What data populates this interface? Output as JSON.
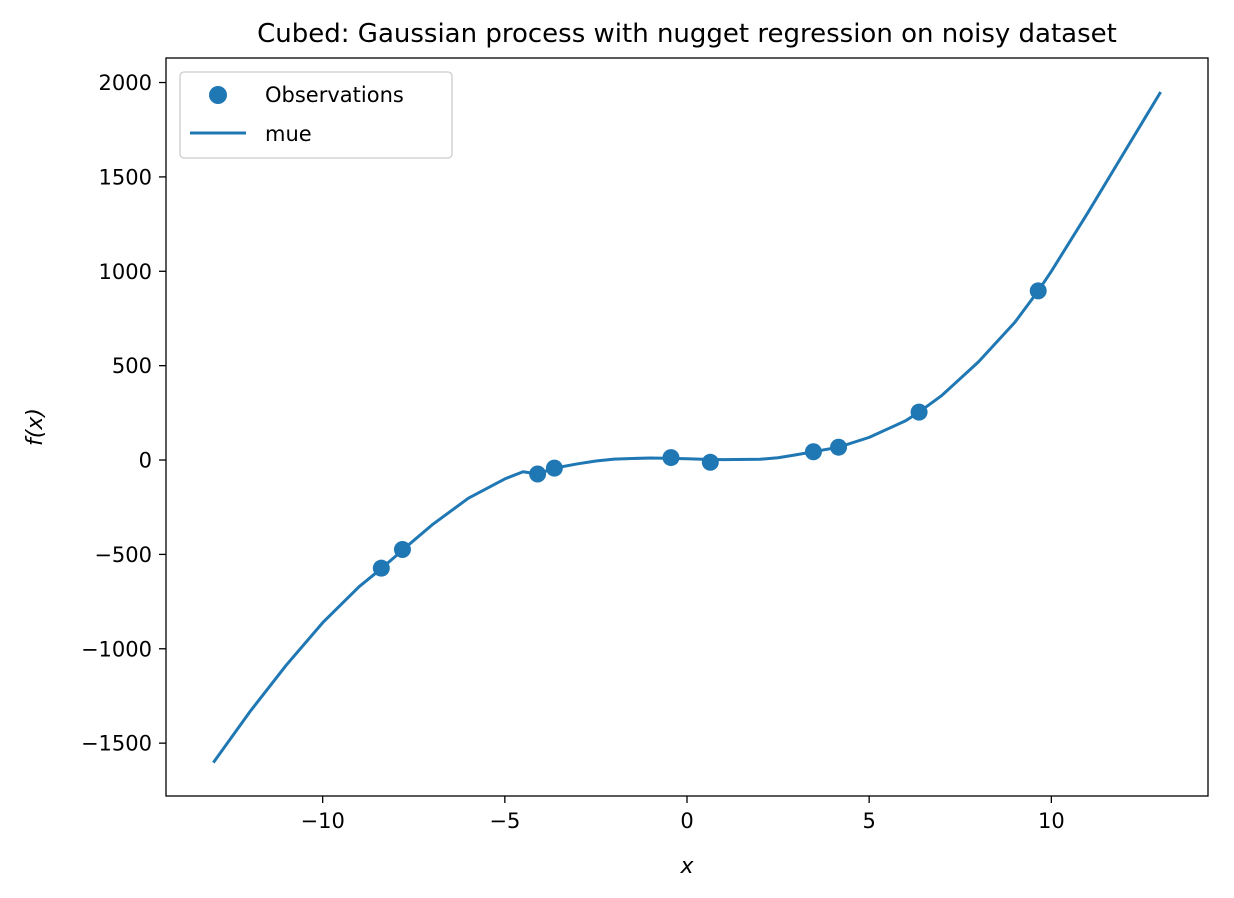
{
  "chart_data": {
    "type": "line",
    "title": "Cubed: Gaussian process with nugget regression on noisy dataset",
    "xlabel": "x",
    "ylabel": "f(x)",
    "xlim": [
      -14.3,
      14.3
    ],
    "ylim": [
      -1780,
      2130
    ],
    "xticks": [
      -10,
      -5,
      0,
      5,
      10
    ],
    "yticks": [
      -1500,
      -1000,
      -500,
      0,
      500,
      1000,
      1500,
      2000
    ],
    "xtick_labels": [
      "−10",
      "−5",
      "0",
      "5",
      "10"
    ],
    "ytick_labels": [
      "−1500",
      "−1000",
      "−500",
      "0",
      "500",
      "1000",
      "1500",
      "2000"
    ],
    "grid": false,
    "legend_position": "top-left",
    "color": "#1f77b4",
    "series": [
      {
        "name": "Observations",
        "kind": "scatter",
        "x": [
          -8.39,
          -7.81,
          -4.1,
          -3.64,
          -0.44,
          0.64,
          3.47,
          4.16,
          6.37,
          9.64
        ],
        "y": [
          -573,
          -474,
          -74,
          -43,
          13,
          -12,
          44,
          68,
          254,
          896
        ]
      },
      {
        "name": "mue",
        "kind": "line",
        "x": [
          -13.0,
          -12.0,
          -11.0,
          -10.0,
          -9.0,
          -8.39,
          -8.0,
          -7.81,
          -7.0,
          -6.0,
          -5.0,
          -4.5,
          -4.1,
          -3.64,
          -3.0,
          -2.5,
          -2.0,
          -1.0,
          -0.44,
          0.0,
          0.64,
          1.0,
          2.0,
          2.5,
          3.0,
          3.47,
          4.16,
          5.0,
          6.0,
          6.37,
          7.0,
          8.0,
          9.0,
          9.64,
          10.0,
          11.0,
          12.0,
          13.0
        ],
        "y": [
          -1603,
          -1334,
          -1087,
          -862,
          -671,
          -575,
          -510,
          -477,
          -344,
          -202,
          -100,
          -62,
          -74,
          -43,
          -20,
          -5,
          5,
          11,
          9,
          7,
          3,
          2,
          4,
          12,
          28,
          44,
          68,
          120,
          208,
          254,
          343,
          520,
          730,
          896,
          1000,
          1310,
          1630,
          1950
        ]
      }
    ]
  }
}
